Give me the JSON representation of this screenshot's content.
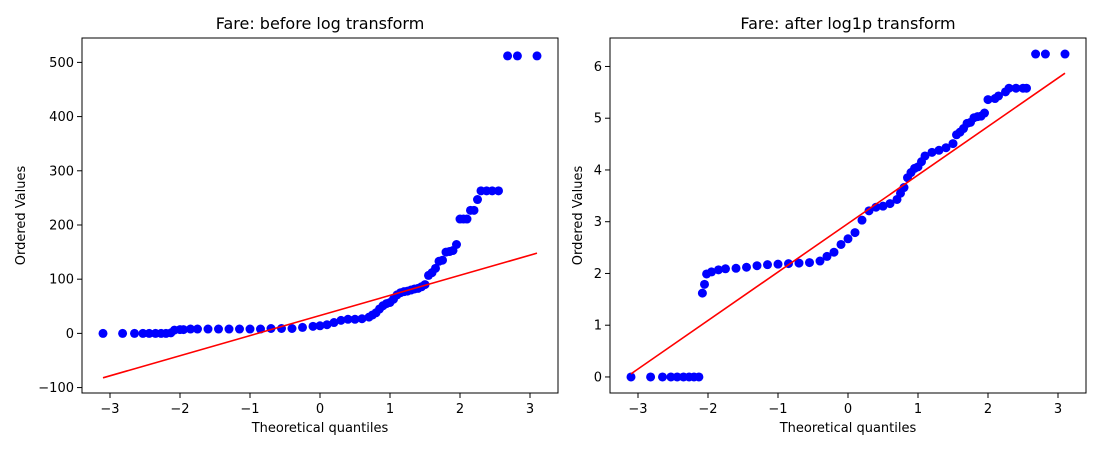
{
  "colors": {
    "points": "#0000ff",
    "fit_line": "#ff0000",
    "axes": "#000000",
    "background": "#ffffff"
  },
  "chart_data": [
    {
      "type": "scatter",
      "title": "Fare: before log transform",
      "xlabel": "Theoretical quantiles",
      "ylabel": "Ordered Values",
      "xlim": [
        -3.4,
        3.4
      ],
      "ylim": [
        -110,
        545
      ],
      "xticks": [
        -3,
        -2,
        -1,
        0,
        1,
        2,
        3
      ],
      "yticks": [
        -100,
        0,
        100,
        200,
        300,
        400,
        500
      ],
      "grid": false,
      "legend": "none",
      "series": [
        {
          "kind": "points",
          "points": [
            [
              -3.1,
              0
            ],
            [
              -2.82,
              0
            ],
            [
              -2.65,
              0
            ],
            [
              -2.53,
              0
            ],
            [
              -2.44,
              0
            ],
            [
              -2.35,
              0
            ],
            [
              -2.27,
              0
            ],
            [
              -2.2,
              0
            ],
            [
              -2.13,
              1
            ],
            [
              -2.08,
              6
            ],
            [
              -2.0,
              7
            ],
            [
              -1.95,
              7
            ],
            [
              -1.85,
              8
            ],
            [
              -1.75,
              8
            ],
            [
              -1.6,
              8
            ],
            [
              -1.45,
              8
            ],
            [
              -1.3,
              8
            ],
            [
              -1.15,
              8
            ],
            [
              -1.0,
              8
            ],
            [
              -0.85,
              8
            ],
            [
              -0.7,
              9
            ],
            [
              -0.55,
              9
            ],
            [
              -0.4,
              9
            ],
            [
              -0.25,
              11
            ],
            [
              -0.1,
              13
            ],
            [
              0.0,
              14
            ],
            [
              0.1,
              16
            ],
            [
              0.2,
              20
            ],
            [
              0.3,
              24
            ],
            [
              0.4,
              26
            ],
            [
              0.5,
              26
            ],
            [
              0.6,
              27
            ],
            [
              0.7,
              30
            ],
            [
              0.75,
              34
            ],
            [
              0.8,
              38
            ],
            [
              0.85,
              45
            ],
            [
              0.9,
              51
            ],
            [
              0.95,
              55
            ],
            [
              1.0,
              57
            ],
            [
              1.05,
              63
            ],
            [
              1.1,
              71
            ],
            [
              1.15,
              75
            ],
            [
              1.2,
              77
            ],
            [
              1.25,
              78
            ],
            [
              1.3,
              80
            ],
            [
              1.35,
              82
            ],
            [
              1.4,
              83
            ],
            [
              1.45,
              86
            ],
            [
              1.5,
              90
            ],
            [
              1.55,
              107
            ],
            [
              1.6,
              112
            ],
            [
              1.65,
              120
            ],
            [
              1.7,
              133
            ],
            [
              1.75,
              135
            ],
            [
              1.8,
              150
            ],
            [
              1.85,
              151
            ],
            [
              1.9,
              153
            ],
            [
              1.95,
              164
            ],
            [
              2.0,
              211
            ],
            [
              2.05,
              211
            ],
            [
              2.1,
              211
            ],
            [
              2.15,
              227
            ],
            [
              2.2,
              227
            ],
            [
              2.25,
              247
            ],
            [
              2.3,
              263
            ],
            [
              2.38,
              263
            ],
            [
              2.46,
              263
            ],
            [
              2.55,
              263
            ],
            [
              2.68,
              512
            ],
            [
              2.82,
              512
            ],
            [
              3.1,
              512
            ]
          ]
        },
        {
          "kind": "fit_line",
          "points": [
            [
              -3.1,
              -82
            ],
            [
              3.1,
              148
            ]
          ]
        }
      ]
    },
    {
      "type": "scatter",
      "title": "Fare: after log1p transform",
      "xlabel": "Theoretical quantiles",
      "ylabel": "Ordered Values",
      "xlim": [
        -3.4,
        3.4
      ],
      "ylim": [
        -0.31,
        6.55
      ],
      "xticks": [
        -3,
        -2,
        -1,
        0,
        1,
        2,
        3
      ],
      "yticks": [
        0,
        1,
        2,
        3,
        4,
        5,
        6
      ],
      "grid": false,
      "legend": "none",
      "series": [
        {
          "kind": "points",
          "points": [
            [
              -3.1,
              0
            ],
            [
              -2.82,
              0
            ],
            [
              -2.65,
              0
            ],
            [
              -2.53,
              0
            ],
            [
              -2.44,
              0
            ],
            [
              -2.35,
              0
            ],
            [
              -2.27,
              0
            ],
            [
              -2.2,
              0
            ],
            [
              -2.13,
              0
            ],
            [
              -2.08,
              1.62
            ],
            [
              -2.05,
              1.79
            ],
            [
              -2.02,
              1.99
            ],
            [
              -1.95,
              2.03
            ],
            [
              -1.85,
              2.07
            ],
            [
              -1.75,
              2.09
            ],
            [
              -1.6,
              2.1
            ],
            [
              -1.45,
              2.12
            ],
            [
              -1.3,
              2.15
            ],
            [
              -1.15,
              2.17
            ],
            [
              -1.0,
              2.18
            ],
            [
              -0.85,
              2.19
            ],
            [
              -0.7,
              2.2
            ],
            [
              -0.55,
              2.21
            ],
            [
              -0.4,
              2.24
            ],
            [
              -0.3,
              2.33
            ],
            [
              -0.2,
              2.41
            ],
            [
              -0.1,
              2.56
            ],
            [
              0.0,
              2.67
            ],
            [
              0.1,
              2.79
            ],
            [
              0.2,
              3.03
            ],
            [
              0.3,
              3.21
            ],
            [
              0.4,
              3.28
            ],
            [
              0.5,
              3.3
            ],
            [
              0.6,
              3.35
            ],
            [
              0.7,
              3.43
            ],
            [
              0.75,
              3.55
            ],
            [
              0.8,
              3.66
            ],
            [
              0.85,
              3.85
            ],
            [
              0.9,
              3.95
            ],
            [
              0.95,
              4.03
            ],
            [
              1.0,
              4.06
            ],
            [
              1.05,
              4.16
            ],
            [
              1.1,
              4.27
            ],
            [
              1.2,
              4.34
            ],
            [
              1.3,
              4.38
            ],
            [
              1.4,
              4.43
            ],
            [
              1.5,
              4.51
            ],
            [
              1.55,
              4.68
            ],
            [
              1.6,
              4.73
            ],
            [
              1.65,
              4.8
            ],
            [
              1.7,
              4.9
            ],
            [
              1.75,
              4.92
            ],
            [
              1.8,
              5.01
            ],
            [
              1.85,
              5.03
            ],
            [
              1.9,
              5.04
            ],
            [
              1.95,
              5.1
            ],
            [
              2.0,
              5.36
            ],
            [
              2.1,
              5.38
            ],
            [
              2.15,
              5.43
            ],
            [
              2.25,
              5.51
            ],
            [
              2.3,
              5.58
            ],
            [
              2.4,
              5.58
            ],
            [
              2.5,
              5.58
            ],
            [
              2.55,
              5.58
            ],
            [
              2.68,
              6.24
            ],
            [
              2.82,
              6.24
            ],
            [
              3.1,
              6.24
            ]
          ]
        },
        {
          "kind": "fit_line",
          "points": [
            [
              -3.1,
              0.06
            ],
            [
              3.1,
              5.87
            ]
          ]
        }
      ]
    }
  ]
}
